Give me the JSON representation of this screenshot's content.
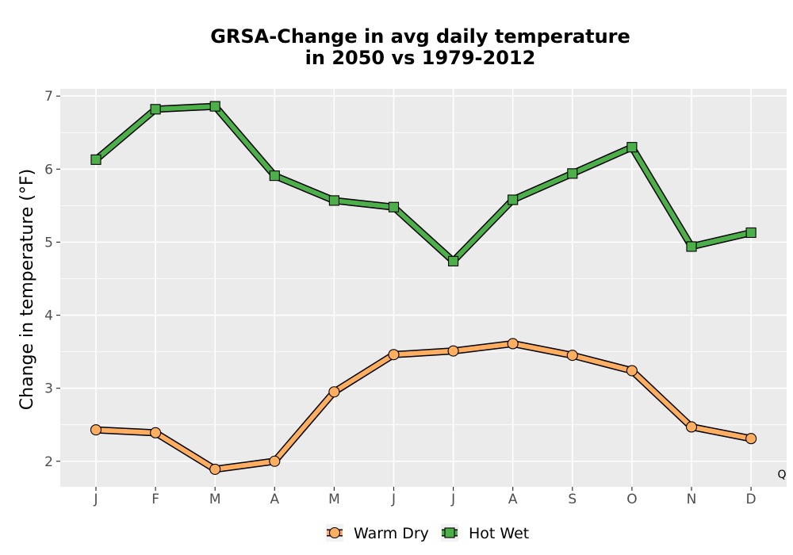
{
  "chart_data": {
    "type": "line",
    "title_lines": [
      "GRSA-Change in avg daily temperature",
      "in 2050 vs 1979-2012"
    ],
    "xlabel": "",
    "ylabel": "Change in temperature (°F)",
    "categories": [
      "J",
      "F",
      "M",
      "A",
      "M",
      "J",
      "J",
      "A",
      "S",
      "O",
      "N",
      "D"
    ],
    "ylim": [
      1.65,
      7.1
    ],
    "yticks": [
      2,
      3,
      4,
      5,
      6,
      7
    ],
    "grid": true,
    "legend_position": "bottom",
    "corner_mark": "Q",
    "series": [
      {
        "name": "Warm Dry",
        "marker": "circle",
        "color": "#fdae61",
        "values": [
          2.43,
          2.39,
          1.89,
          2.0,
          2.95,
          3.46,
          3.51,
          3.61,
          3.45,
          3.24,
          2.47,
          2.31
        ]
      },
      {
        "name": "Hot Wet",
        "marker": "square",
        "color": "#4daf4a",
        "values": [
          6.13,
          6.82,
          6.86,
          5.91,
          5.57,
          5.48,
          4.74,
          5.58,
          5.94,
          6.3,
          4.94,
          5.13
        ]
      }
    ]
  }
}
